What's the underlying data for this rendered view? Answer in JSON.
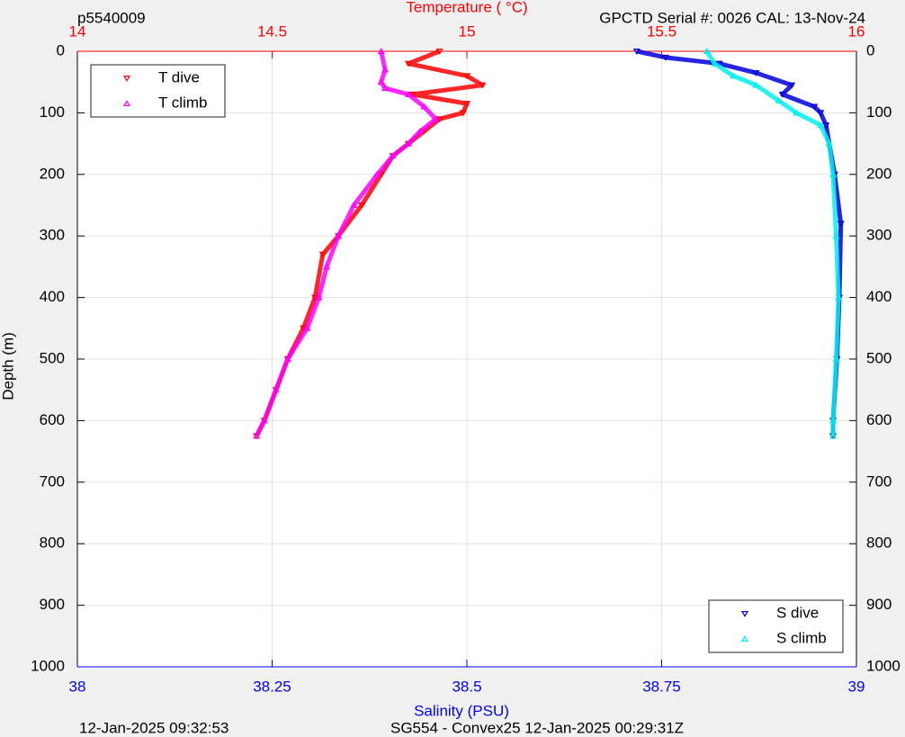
{
  "chart_data": {
    "type": "scatter",
    "title_left": "p5540009",
    "title_right": "GPCTD Serial #: 0026 CAL: 13-Nov-24",
    "x2label": "Temperature (    °C)",
    "xlabel": "Salinity (PSU)",
    "ylabel": "Depth (m)",
    "footer_left": "12-Jan-2025 09:32:53",
    "footer_center": "SG554 - Convex25 12-Jan-2025 00:29:31Z",
    "xlim": [
      38,
      39
    ],
    "xticks": [
      38,
      38.25,
      38.5,
      38.75,
      39
    ],
    "x2lim": [
      14,
      16
    ],
    "x2ticks": [
      14,
      14.5,
      15,
      15.5,
      16
    ],
    "ylim": [
      0,
      1000
    ],
    "yticks": [
      0,
      100,
      200,
      300,
      400,
      500,
      600,
      700,
      800,
      900,
      1000
    ],
    "y_reversed": true,
    "grid": true,
    "series": [
      {
        "name": "T dive",
        "color": "#ff0000",
        "axis": "x2",
        "marker": "v",
        "legend": "upper left",
        "y": [
          0,
          20,
          40,
          55,
          70,
          85,
          100,
          110,
          130,
          150,
          170,
          200,
          250,
          300,
          330,
          400,
          450,
          500,
          550,
          600,
          625
        ],
        "x": [
          14.93,
          14.85,
          15.0,
          15.04,
          14.86,
          15.0,
          14.99,
          14.93,
          14.89,
          14.85,
          14.81,
          14.78,
          14.73,
          14.67,
          14.63,
          14.61,
          14.58,
          14.54,
          14.51,
          14.48,
          14.46
        ]
      },
      {
        "name": "T climb",
        "color": "#ff00ff",
        "axis": "x2",
        "marker": "^",
        "legend": "upper left",
        "y": [
          0,
          30,
          50,
          60,
          70,
          90,
          110,
          130,
          150,
          170,
          200,
          250,
          300,
          350,
          400,
          450,
          500,
          550,
          600,
          625
        ],
        "x": [
          14.78,
          14.79,
          14.78,
          14.79,
          14.85,
          14.89,
          14.92,
          14.88,
          14.85,
          14.81,
          14.77,
          14.71,
          14.67,
          14.64,
          14.62,
          14.59,
          14.54,
          14.51,
          14.48,
          14.46
        ]
      },
      {
        "name": "S dive",
        "color": "#0000dd",
        "axis": "x",
        "marker": "v",
        "legend": "lower right",
        "y": [
          0,
          10,
          20,
          35,
          55,
          70,
          90,
          100,
          120,
          200,
          280,
          400,
          500,
          600,
          625
        ],
        "x": [
          38.718,
          38.755,
          38.824,
          38.871,
          38.917,
          38.905,
          38.946,
          38.954,
          38.961,
          38.972,
          38.98,
          38.978,
          38.975,
          38.97,
          38.97
        ]
      },
      {
        "name": "S climb",
        "color": "#00eeee",
        "axis": "x",
        "marker": "^",
        "legend": "lower right",
        "y": [
          0,
          20,
          40,
          55,
          80,
          100,
          120,
          150,
          200,
          300,
          400,
          500,
          600,
          625
        ],
        "x": [
          38.808,
          38.818,
          38.842,
          38.871,
          38.9,
          38.923,
          38.954,
          38.965,
          38.97,
          38.974,
          38.977,
          38.974,
          38.97,
          38.97
        ]
      }
    ]
  }
}
